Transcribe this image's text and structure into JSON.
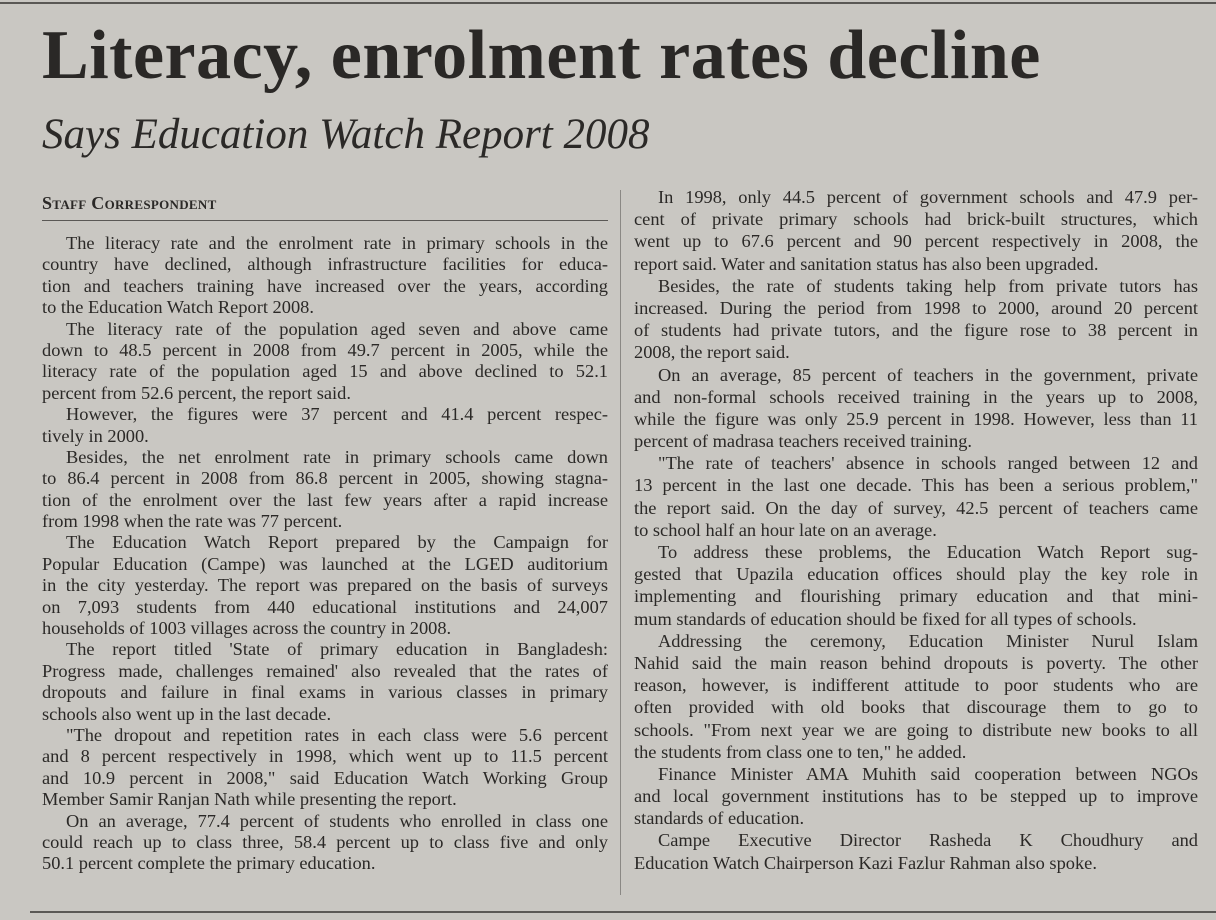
{
  "headline": "Literacy, enrolment rates decline",
  "subheadline": "Says Education Watch Report 2008",
  "byline": "Staff Correspondent",
  "left_column": [
    [
      "The literacy rate and the enrolment rate in primary schools in the",
      "country have declined, although infrastructure facilities for educa-",
      "tion and teachers training have increased over the years, according",
      "to the Education Watch Report 2008."
    ],
    [
      "The literacy rate of the population aged seven and above came",
      "down to 48.5 percent in 2008 from 49.7 percent in 2005, while the",
      "literacy rate of the population aged 15 and above declined to 52.1",
      "percent from 52.6 percent, the report said."
    ],
    [
      "However, the figures were 37 percent and 41.4 percent respec-",
      "tively in 2000."
    ],
    [
      "Besides, the net enrolment rate in primary schools came down",
      "to 86.4 percent in 2008 from 86.8 percent in 2005, showing stagna-",
      "tion of the enrolment over the last few years after a rapid increase",
      "from 1998 when the rate was 77 percent."
    ],
    [
      "The Education Watch Report prepared by the Campaign for",
      "Popular Education (Campe) was launched at the LGED auditorium",
      "in the city yesterday. The report was prepared on the basis of surveys",
      "on 7,093 students from 440 educational institutions and 24,007",
      "households of 1003 villages across the country in 2008."
    ],
    [
      "The report titled 'State of primary education in Bangladesh:",
      "Progress made, challenges remained' also revealed that the rates of",
      "dropouts and failure in final exams in various classes in primary",
      "schools also went up in the last decade."
    ],
    [
      "\"The dropout and repetition rates in each class were 5.6 percent",
      "and 8 percent respectively in 1998, which went up to 11.5 percent",
      "and 10.9 percent in 2008,\" said Education Watch Working Group",
      "Member Samir Ranjan Nath while presenting the report."
    ],
    [
      "On an average, 77.4 percent of students who enrolled in class one",
      "could reach up to class three, 58.4 percent up to class five and only",
      "50.1 percent complete the primary education."
    ]
  ],
  "right_column": [
    [
      "In 1998, only 44.5 percent of government schools and 47.9 per-",
      "cent of private primary schools had brick-built structures, which",
      "went up to 67.6 percent and 90 percent respectively in 2008, the",
      "report said. Water and sanitation status has also been upgraded."
    ],
    [
      "Besides, the rate of students taking help from private tutors has",
      "increased. During the period from 1998 to 2000, around 20 percent",
      "of students had private tutors, and the figure rose to 38 percent in",
      "2008, the report said."
    ],
    [
      "On an average, 85 percent of teachers in the government, private",
      "and non-formal schools received training in the years up to 2008,",
      "while the figure was only 25.9 percent in 1998. However, less than 11",
      "percent of madrasa teachers received training."
    ],
    [
      "\"The rate of teachers' absence in schools ranged between 12 and",
      "13 percent in the last one decade. This has been a serious problem,\"",
      "the report said. On the day of survey, 42.5 percent of teachers came",
      "to school half an hour late on an average."
    ],
    [
      "To address these problems, the Education Watch Report sug-",
      "gested that Upazila education offices should play the key role in",
      "implementing and flourishing primary education and that mini-",
      "mum standards of education should be fixed for all types of schools."
    ],
    [
      "Addressing the ceremony, Education Minister Nurul Islam",
      "Nahid said the main reason behind dropouts is poverty. The other",
      "reason, however, is indifferent attitude to poor students who are",
      "often provided with old books that discourage them to go to",
      "schools. \"From next year we are going to distribute new books to all",
      "the students from class one to ten,\" he added."
    ],
    [
      "Finance Minister AMA Muhith said cooperation between NGOs",
      "and local government institutions has to be stepped up to improve",
      "standards of education."
    ],
    [
      "Campe Executive Director Rasheda K Choudhury and",
      "Education Watch Chairperson Kazi Fazlur Rahman also spoke."
    ]
  ]
}
